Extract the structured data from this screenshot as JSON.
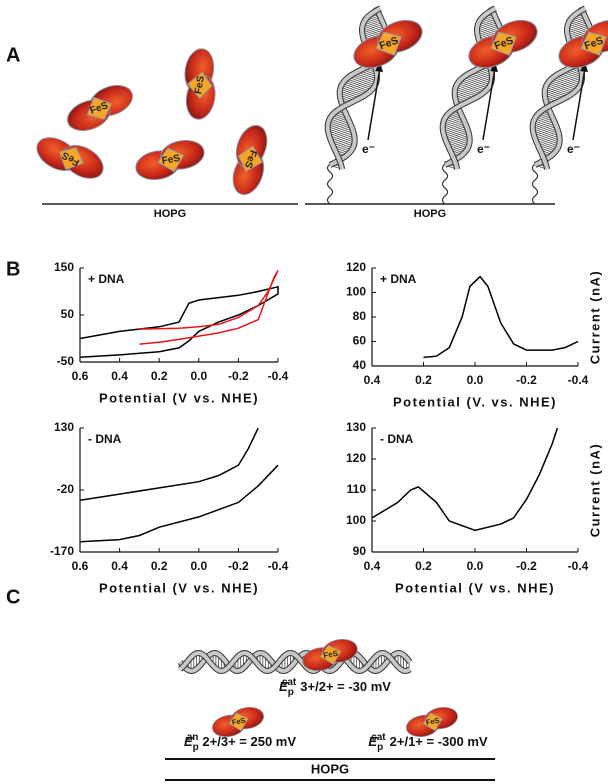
{
  "figure": {
    "panel_labels": [
      "A",
      "B",
      "C"
    ],
    "protein_label": "FeS",
    "electron_label": "e⁻",
    "surface_label": "HOPG",
    "potentials": [
      {
        "symbol": "E",
        "sub": "p",
        "sup": "cat",
        "text": "3+/2+ = -30 mV"
      },
      {
        "symbol": "E",
        "sub": "p",
        "sup": "an",
        "text": "2+/3+ = 250 mV"
      },
      {
        "symbol": "E",
        "sub": "p",
        "sup": "cat",
        "text": "2+/1+ = -300 mV"
      }
    ]
  },
  "chart_data": [
    {
      "type": "line",
      "annotation": "+ DNA",
      "x_label": "Potential (V vs. NHE)",
      "xlim": [
        0.6,
        -0.4
      ],
      "xticks": [
        0.6,
        0.4,
        0.2,
        {
          "value": 0,
          "label": "0.0"
        },
        -0.2,
        -0.4
      ],
      "ylim": [
        -50,
        150
      ],
      "yticks": [
        -50,
        50,
        150
      ],
      "series": [
        {
          "color": "#000000",
          "x": [
            0.6,
            0.4,
            0.2,
            0.1,
            0.05,
            0,
            -0.1,
            -0.2,
            -0.3,
            -0.4,
            -0.4,
            -0.3,
            -0.2,
            -0.1,
            0,
            0.05,
            0.1,
            0.2,
            0.4,
            0.6
          ],
          "values": [
            -40,
            -35,
            -28,
            -20,
            -5,
            15,
            35,
            50,
            70,
            95,
            110,
            100,
            92,
            87,
            82,
            75,
            35,
            25,
            15,
            0
          ]
        },
        {
          "color": "#e8141c",
          "x": [
            0.3,
            0.1,
            0,
            -0.1,
            -0.2,
            -0.3,
            -0.35,
            -0.4,
            -0.38,
            -0.3,
            -0.2,
            -0.1,
            0,
            0.1,
            0.2,
            0.3
          ],
          "values": [
            20,
            22,
            25,
            30,
            45,
            70,
            100,
            145,
            130,
            40,
            22,
            12,
            5,
            -2,
            -8,
            -12
          ]
        }
      ]
    },
    {
      "type": "line",
      "annotation": "+ DNA",
      "x_label": "Potential (V. vs. NHE)",
      "y_label": "Current (nA)",
      "xlim": [
        0.4,
        -0.4
      ],
      "xticks": [
        0.4,
        0.2,
        {
          "value": 0,
          "label": "0.0"
        },
        -0.2,
        -0.4
      ],
      "ylim": [
        40,
        120
      ],
      "yticks": [
        40,
        60,
        80,
        100,
        120
      ],
      "series": [
        {
          "color": "#000000",
          "x": [
            0.2,
            0.15,
            0.1,
            0.05,
            0.02,
            -0.02,
            -0.05,
            -0.1,
            -0.15,
            -0.2,
            -0.3,
            -0.35,
            -0.4
          ],
          "values": [
            47,
            48,
            55,
            80,
            105,
            113,
            105,
            75,
            58,
            53,
            53,
            55,
            60
          ]
        }
      ]
    },
    {
      "type": "line",
      "annotation": "- DNA",
      "x_label": "Potential (V vs. NHE)",
      "xlim": [
        0.6,
        -0.4
      ],
      "xticks": [
        0.6,
        0.4,
        0.2,
        {
          "value": 0,
          "label": "0.0"
        },
        -0.2,
        -0.4
      ],
      "ylim": [
        -170,
        130
      ],
      "yticks": [
        -170,
        -20,
        130
      ],
      "series": [
        {
          "color": "#000000",
          "x": [
            0.6,
            0.4,
            0.3,
            0.2,
            0,
            -0.2,
            -0.3,
            -0.4
          ],
          "values": [
            -145,
            -140,
            -130,
            -110,
            -85,
            -50,
            -10,
            40
          ]
        },
        {
          "color": "#000000",
          "x": [
            0.6,
            0.4,
            0.2,
            0,
            -0.1,
            -0.2,
            -0.25,
            -0.3
          ],
          "values": [
            -45,
            -30,
            -15,
            0,
            15,
            40,
            80,
            130
          ]
        }
      ]
    },
    {
      "type": "line",
      "annotation": "- DNA",
      "x_label": "Potential (V vs. NHE)",
      "y_label": "Current (nA)",
      "xlim": [
        0.4,
        -0.4
      ],
      "xticks": [
        0.4,
        0.2,
        {
          "value": 0,
          "label": "0.0"
        },
        -0.2,
        -0.4
      ],
      "ylim": [
        90,
        130
      ],
      "yticks": [
        90,
        100,
        110,
        120,
        130
      ],
      "series": [
        {
          "color": "#000000",
          "x": [
            0.4,
            0.3,
            0.25,
            0.22,
            0.15,
            0.1,
            0,
            -0.1,
            -0.15,
            -0.2,
            -0.25,
            -0.3,
            -0.32
          ],
          "values": [
            101,
            106,
            110,
            111,
            106,
            100,
            97,
            99,
            101,
            107,
            115,
            125,
            130
          ]
        }
      ]
    }
  ]
}
